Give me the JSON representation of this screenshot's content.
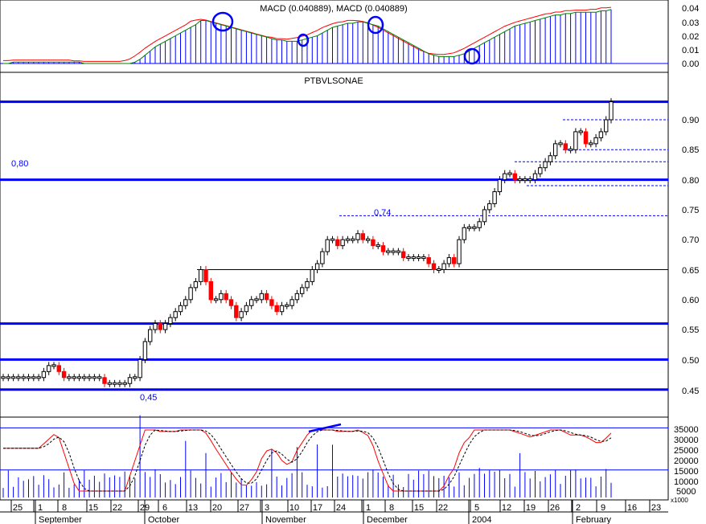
{
  "colors": {
    "frame": "#000000",
    "grid": "#b4b4b4",
    "blue": "#0000ff",
    "red": "#ff0000",
    "green": "#008000",
    "up_candle": "#ffffff",
    "down_candle": "#ff0000"
  },
  "macd_panel": {
    "title": "MACD (0.040889), MACD (0.040889)",
    "y_ticks": [
      "0.04",
      "0.03",
      "0.02",
      "0.01",
      "0.00"
    ]
  },
  "price_panel": {
    "title": "PTBVLSONAE",
    "y_ticks": [
      "0.90",
      "0.85",
      "0.80",
      "0.75",
      "0.70",
      "0.65",
      "0.60",
      "0.55",
      "0.50",
      "0.45"
    ],
    "annotations": [
      "0,80",
      "0,74",
      "0,45"
    ]
  },
  "volume_panel": {
    "y_ticks": [
      "35000",
      "30000",
      "25000",
      "20000",
      "15000",
      "10000",
      "5000"
    ],
    "unit_label": "x1000"
  },
  "x_axis": {
    "day_labels": [
      "25",
      "1",
      "8",
      "15",
      "22",
      "29",
      "6",
      "13",
      "20",
      "27",
      "3",
      "10",
      "17",
      "24",
      "1",
      "8",
      "15",
      "22",
      "5",
      "12",
      "19",
      "26",
      "2",
      "9",
      "16",
      "23"
    ],
    "month_labels": [
      "September",
      "October",
      "November",
      "December",
      "2004",
      "February"
    ]
  },
  "chart_data": {
    "type": "candlestick",
    "title": "PTBVLSONAE",
    "period": "September 2003 – February 2004",
    "price_axis": {
      "ylim": [
        0.44,
        0.94
      ],
      "ticks": [
        0.45,
        0.5,
        0.55,
        0.6,
        0.65,
        0.7,
        0.75,
        0.8,
        0.85,
        0.9
      ]
    },
    "horizontal_levels": [
      0.93,
      0.8,
      0.56,
      0.5,
      0.45
    ],
    "close_series": [
      0.47,
      0.47,
      0.47,
      0.47,
      0.47,
      0.47,
      0.47,
      0.47,
      0.48,
      0.49,
      0.49,
      0.48,
      0.47,
      0.47,
      0.47,
      0.47,
      0.47,
      0.47,
      0.47,
      0.47,
      0.46,
      0.46,
      0.46,
      0.46,
      0.46,
      0.47,
      0.47,
      0.5,
      0.53,
      0.55,
      0.56,
      0.55,
      0.56,
      0.57,
      0.58,
      0.59,
      0.6,
      0.62,
      0.63,
      0.65,
      0.63,
      0.6,
      0.6,
      0.61,
      0.6,
      0.59,
      0.57,
      0.58,
      0.59,
      0.6,
      0.6,
      0.61,
      0.6,
      0.59,
      0.58,
      0.59,
      0.59,
      0.6,
      0.61,
      0.62,
      0.63,
      0.65,
      0.66,
      0.68,
      0.7,
      0.7,
      0.69,
      0.7,
      0.7,
      0.7,
      0.71,
      0.7,
      0.7,
      0.69,
      0.69,
      0.68,
      0.68,
      0.68,
      0.68,
      0.67,
      0.67,
      0.67,
      0.67,
      0.67,
      0.66,
      0.65,
      0.65,
      0.66,
      0.67,
      0.66,
      0.7,
      0.72,
      0.72,
      0.72,
      0.73,
      0.75,
      0.76,
      0.78,
      0.8,
      0.81,
      0.81,
      0.8,
      0.8,
      0.8,
      0.8,
      0.81,
      0.82,
      0.83,
      0.84,
      0.86,
      0.86,
      0.85,
      0.85,
      0.88,
      0.88,
      0.86,
      0.86,
      0.87,
      0.88,
      0.9,
      0.93
    ],
    "annotations": [
      {
        "text": "0,80",
        "value": 0.8
      },
      {
        "text": "0,74",
        "value": 0.74
      },
      {
        "text": "0,45",
        "value": 0.45
      }
    ],
    "macd": {
      "ylim": [
        0.0,
        0.042
      ],
      "ticks": [
        0.0,
        0.01,
        0.02,
        0.03,
        0.04
      ],
      "histogram": [
        0.0,
        0.0,
        0.001,
        0.001,
        0.001,
        0.001,
        0.001,
        0.001,
        0.001,
        0.001,
        0.001,
        0.001,
        0.001,
        0.001,
        0.001,
        0.001,
        0.0,
        0.0,
        0.0,
        0.0,
        0.0,
        0.0,
        0.0,
        0.0,
        0.0,
        0.0,
        0.001,
        0.003,
        0.006,
        0.009,
        0.012,
        0.014,
        0.016,
        0.018,
        0.02,
        0.022,
        0.024,
        0.026,
        0.028,
        0.031,
        0.031,
        0.03,
        0.029,
        0.028,
        0.027,
        0.026,
        0.025,
        0.024,
        0.023,
        0.022,
        0.021,
        0.02,
        0.019,
        0.018,
        0.017,
        0.017,
        0.016,
        0.016,
        0.016,
        0.017,
        0.018,
        0.019,
        0.02,
        0.022,
        0.024,
        0.026,
        0.027,
        0.028,
        0.029,
        0.029,
        0.03,
        0.03,
        0.029,
        0.028,
        0.027,
        0.025,
        0.023,
        0.021,
        0.019,
        0.017,
        0.015,
        0.013,
        0.011,
        0.009,
        0.007,
        0.006,
        0.005,
        0.005,
        0.005,
        0.005,
        0.006,
        0.007,
        0.009,
        0.011,
        0.013,
        0.015,
        0.017,
        0.019,
        0.021,
        0.023,
        0.025,
        0.027,
        0.028,
        0.029,
        0.03,
        0.031,
        0.032,
        0.033,
        0.034,
        0.035,
        0.035,
        0.036,
        0.036,
        0.037,
        0.037,
        0.037,
        0.037,
        0.037,
        0.038,
        0.038,
        0.039
      ],
      "circled_points": [
        {
          "date": "Oct 20",
          "value": 0.031
        },
        {
          "date": "Nov 13",
          "value": 0.017
        },
        {
          "date": "Nov 28",
          "value": 0.028
        },
        {
          "date": "Jan 2",
          "value": 0.006
        }
      ]
    },
    "volume": {
      "ylim": [
        0,
        38000
      ],
      "ticks": [
        5000,
        10000,
        15000,
        20000,
        25000,
        30000,
        35000
      ],
      "reference_lines": [
        30000,
        10000
      ]
    }
  }
}
